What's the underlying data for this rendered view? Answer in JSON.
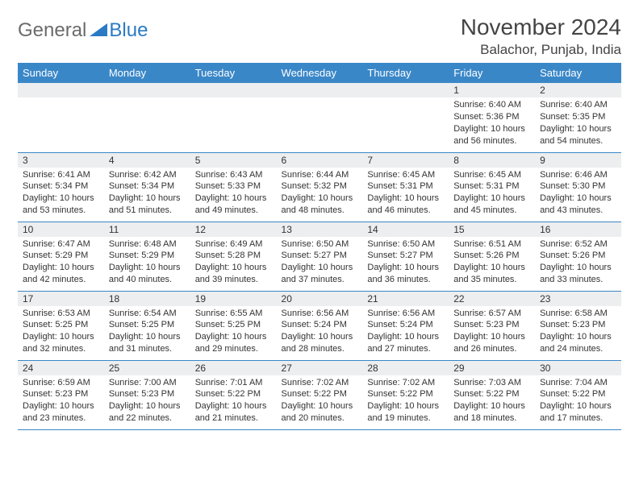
{
  "logo": {
    "part1": "General",
    "part2": "Blue",
    "icon_color": "#2b7ac4"
  },
  "header": {
    "month_title": "November 2024",
    "location": "Balachor, Punjab, India"
  },
  "colors": {
    "header_bg": "#3a87c8",
    "daynum_bg": "#eceeef",
    "rule": "#3a87c8"
  },
  "day_names": [
    "Sunday",
    "Monday",
    "Tuesday",
    "Wednesday",
    "Thursday",
    "Friday",
    "Saturday"
  ],
  "weeks": [
    [
      null,
      null,
      null,
      null,
      null,
      {
        "n": "1",
        "sr": "Sunrise: 6:40 AM",
        "ss": "Sunset: 5:36 PM",
        "d1": "Daylight: 10 hours",
        "d2": "and 56 minutes."
      },
      {
        "n": "2",
        "sr": "Sunrise: 6:40 AM",
        "ss": "Sunset: 5:35 PM",
        "d1": "Daylight: 10 hours",
        "d2": "and 54 minutes."
      }
    ],
    [
      {
        "n": "3",
        "sr": "Sunrise: 6:41 AM",
        "ss": "Sunset: 5:34 PM",
        "d1": "Daylight: 10 hours",
        "d2": "and 53 minutes."
      },
      {
        "n": "4",
        "sr": "Sunrise: 6:42 AM",
        "ss": "Sunset: 5:34 PM",
        "d1": "Daylight: 10 hours",
        "d2": "and 51 minutes."
      },
      {
        "n": "5",
        "sr": "Sunrise: 6:43 AM",
        "ss": "Sunset: 5:33 PM",
        "d1": "Daylight: 10 hours",
        "d2": "and 49 minutes."
      },
      {
        "n": "6",
        "sr": "Sunrise: 6:44 AM",
        "ss": "Sunset: 5:32 PM",
        "d1": "Daylight: 10 hours",
        "d2": "and 48 minutes."
      },
      {
        "n": "7",
        "sr": "Sunrise: 6:45 AM",
        "ss": "Sunset: 5:31 PM",
        "d1": "Daylight: 10 hours",
        "d2": "and 46 minutes."
      },
      {
        "n": "8",
        "sr": "Sunrise: 6:45 AM",
        "ss": "Sunset: 5:31 PM",
        "d1": "Daylight: 10 hours",
        "d2": "and 45 minutes."
      },
      {
        "n": "9",
        "sr": "Sunrise: 6:46 AM",
        "ss": "Sunset: 5:30 PM",
        "d1": "Daylight: 10 hours",
        "d2": "and 43 minutes."
      }
    ],
    [
      {
        "n": "10",
        "sr": "Sunrise: 6:47 AM",
        "ss": "Sunset: 5:29 PM",
        "d1": "Daylight: 10 hours",
        "d2": "and 42 minutes."
      },
      {
        "n": "11",
        "sr": "Sunrise: 6:48 AM",
        "ss": "Sunset: 5:29 PM",
        "d1": "Daylight: 10 hours",
        "d2": "and 40 minutes."
      },
      {
        "n": "12",
        "sr": "Sunrise: 6:49 AM",
        "ss": "Sunset: 5:28 PM",
        "d1": "Daylight: 10 hours",
        "d2": "and 39 minutes."
      },
      {
        "n": "13",
        "sr": "Sunrise: 6:50 AM",
        "ss": "Sunset: 5:27 PM",
        "d1": "Daylight: 10 hours",
        "d2": "and 37 minutes."
      },
      {
        "n": "14",
        "sr": "Sunrise: 6:50 AM",
        "ss": "Sunset: 5:27 PM",
        "d1": "Daylight: 10 hours",
        "d2": "and 36 minutes."
      },
      {
        "n": "15",
        "sr": "Sunrise: 6:51 AM",
        "ss": "Sunset: 5:26 PM",
        "d1": "Daylight: 10 hours",
        "d2": "and 35 minutes."
      },
      {
        "n": "16",
        "sr": "Sunrise: 6:52 AM",
        "ss": "Sunset: 5:26 PM",
        "d1": "Daylight: 10 hours",
        "d2": "and 33 minutes."
      }
    ],
    [
      {
        "n": "17",
        "sr": "Sunrise: 6:53 AM",
        "ss": "Sunset: 5:25 PM",
        "d1": "Daylight: 10 hours",
        "d2": "and 32 minutes."
      },
      {
        "n": "18",
        "sr": "Sunrise: 6:54 AM",
        "ss": "Sunset: 5:25 PM",
        "d1": "Daylight: 10 hours",
        "d2": "and 31 minutes."
      },
      {
        "n": "19",
        "sr": "Sunrise: 6:55 AM",
        "ss": "Sunset: 5:25 PM",
        "d1": "Daylight: 10 hours",
        "d2": "and 29 minutes."
      },
      {
        "n": "20",
        "sr": "Sunrise: 6:56 AM",
        "ss": "Sunset: 5:24 PM",
        "d1": "Daylight: 10 hours",
        "d2": "and 28 minutes."
      },
      {
        "n": "21",
        "sr": "Sunrise: 6:56 AM",
        "ss": "Sunset: 5:24 PM",
        "d1": "Daylight: 10 hours",
        "d2": "and 27 minutes."
      },
      {
        "n": "22",
        "sr": "Sunrise: 6:57 AM",
        "ss": "Sunset: 5:23 PM",
        "d1": "Daylight: 10 hours",
        "d2": "and 26 minutes."
      },
      {
        "n": "23",
        "sr": "Sunrise: 6:58 AM",
        "ss": "Sunset: 5:23 PM",
        "d1": "Daylight: 10 hours",
        "d2": "and 24 minutes."
      }
    ],
    [
      {
        "n": "24",
        "sr": "Sunrise: 6:59 AM",
        "ss": "Sunset: 5:23 PM",
        "d1": "Daylight: 10 hours",
        "d2": "and 23 minutes."
      },
      {
        "n": "25",
        "sr": "Sunrise: 7:00 AM",
        "ss": "Sunset: 5:23 PM",
        "d1": "Daylight: 10 hours",
        "d2": "and 22 minutes."
      },
      {
        "n": "26",
        "sr": "Sunrise: 7:01 AM",
        "ss": "Sunset: 5:22 PM",
        "d1": "Daylight: 10 hours",
        "d2": "and 21 minutes."
      },
      {
        "n": "27",
        "sr": "Sunrise: 7:02 AM",
        "ss": "Sunset: 5:22 PM",
        "d1": "Daylight: 10 hours",
        "d2": "and 20 minutes."
      },
      {
        "n": "28",
        "sr": "Sunrise: 7:02 AM",
        "ss": "Sunset: 5:22 PM",
        "d1": "Daylight: 10 hours",
        "d2": "and 19 minutes."
      },
      {
        "n": "29",
        "sr": "Sunrise: 7:03 AM",
        "ss": "Sunset: 5:22 PM",
        "d1": "Daylight: 10 hours",
        "d2": "and 18 minutes."
      },
      {
        "n": "30",
        "sr": "Sunrise: 7:04 AM",
        "ss": "Sunset: 5:22 PM",
        "d1": "Daylight: 10 hours",
        "d2": "and 17 minutes."
      }
    ]
  ]
}
